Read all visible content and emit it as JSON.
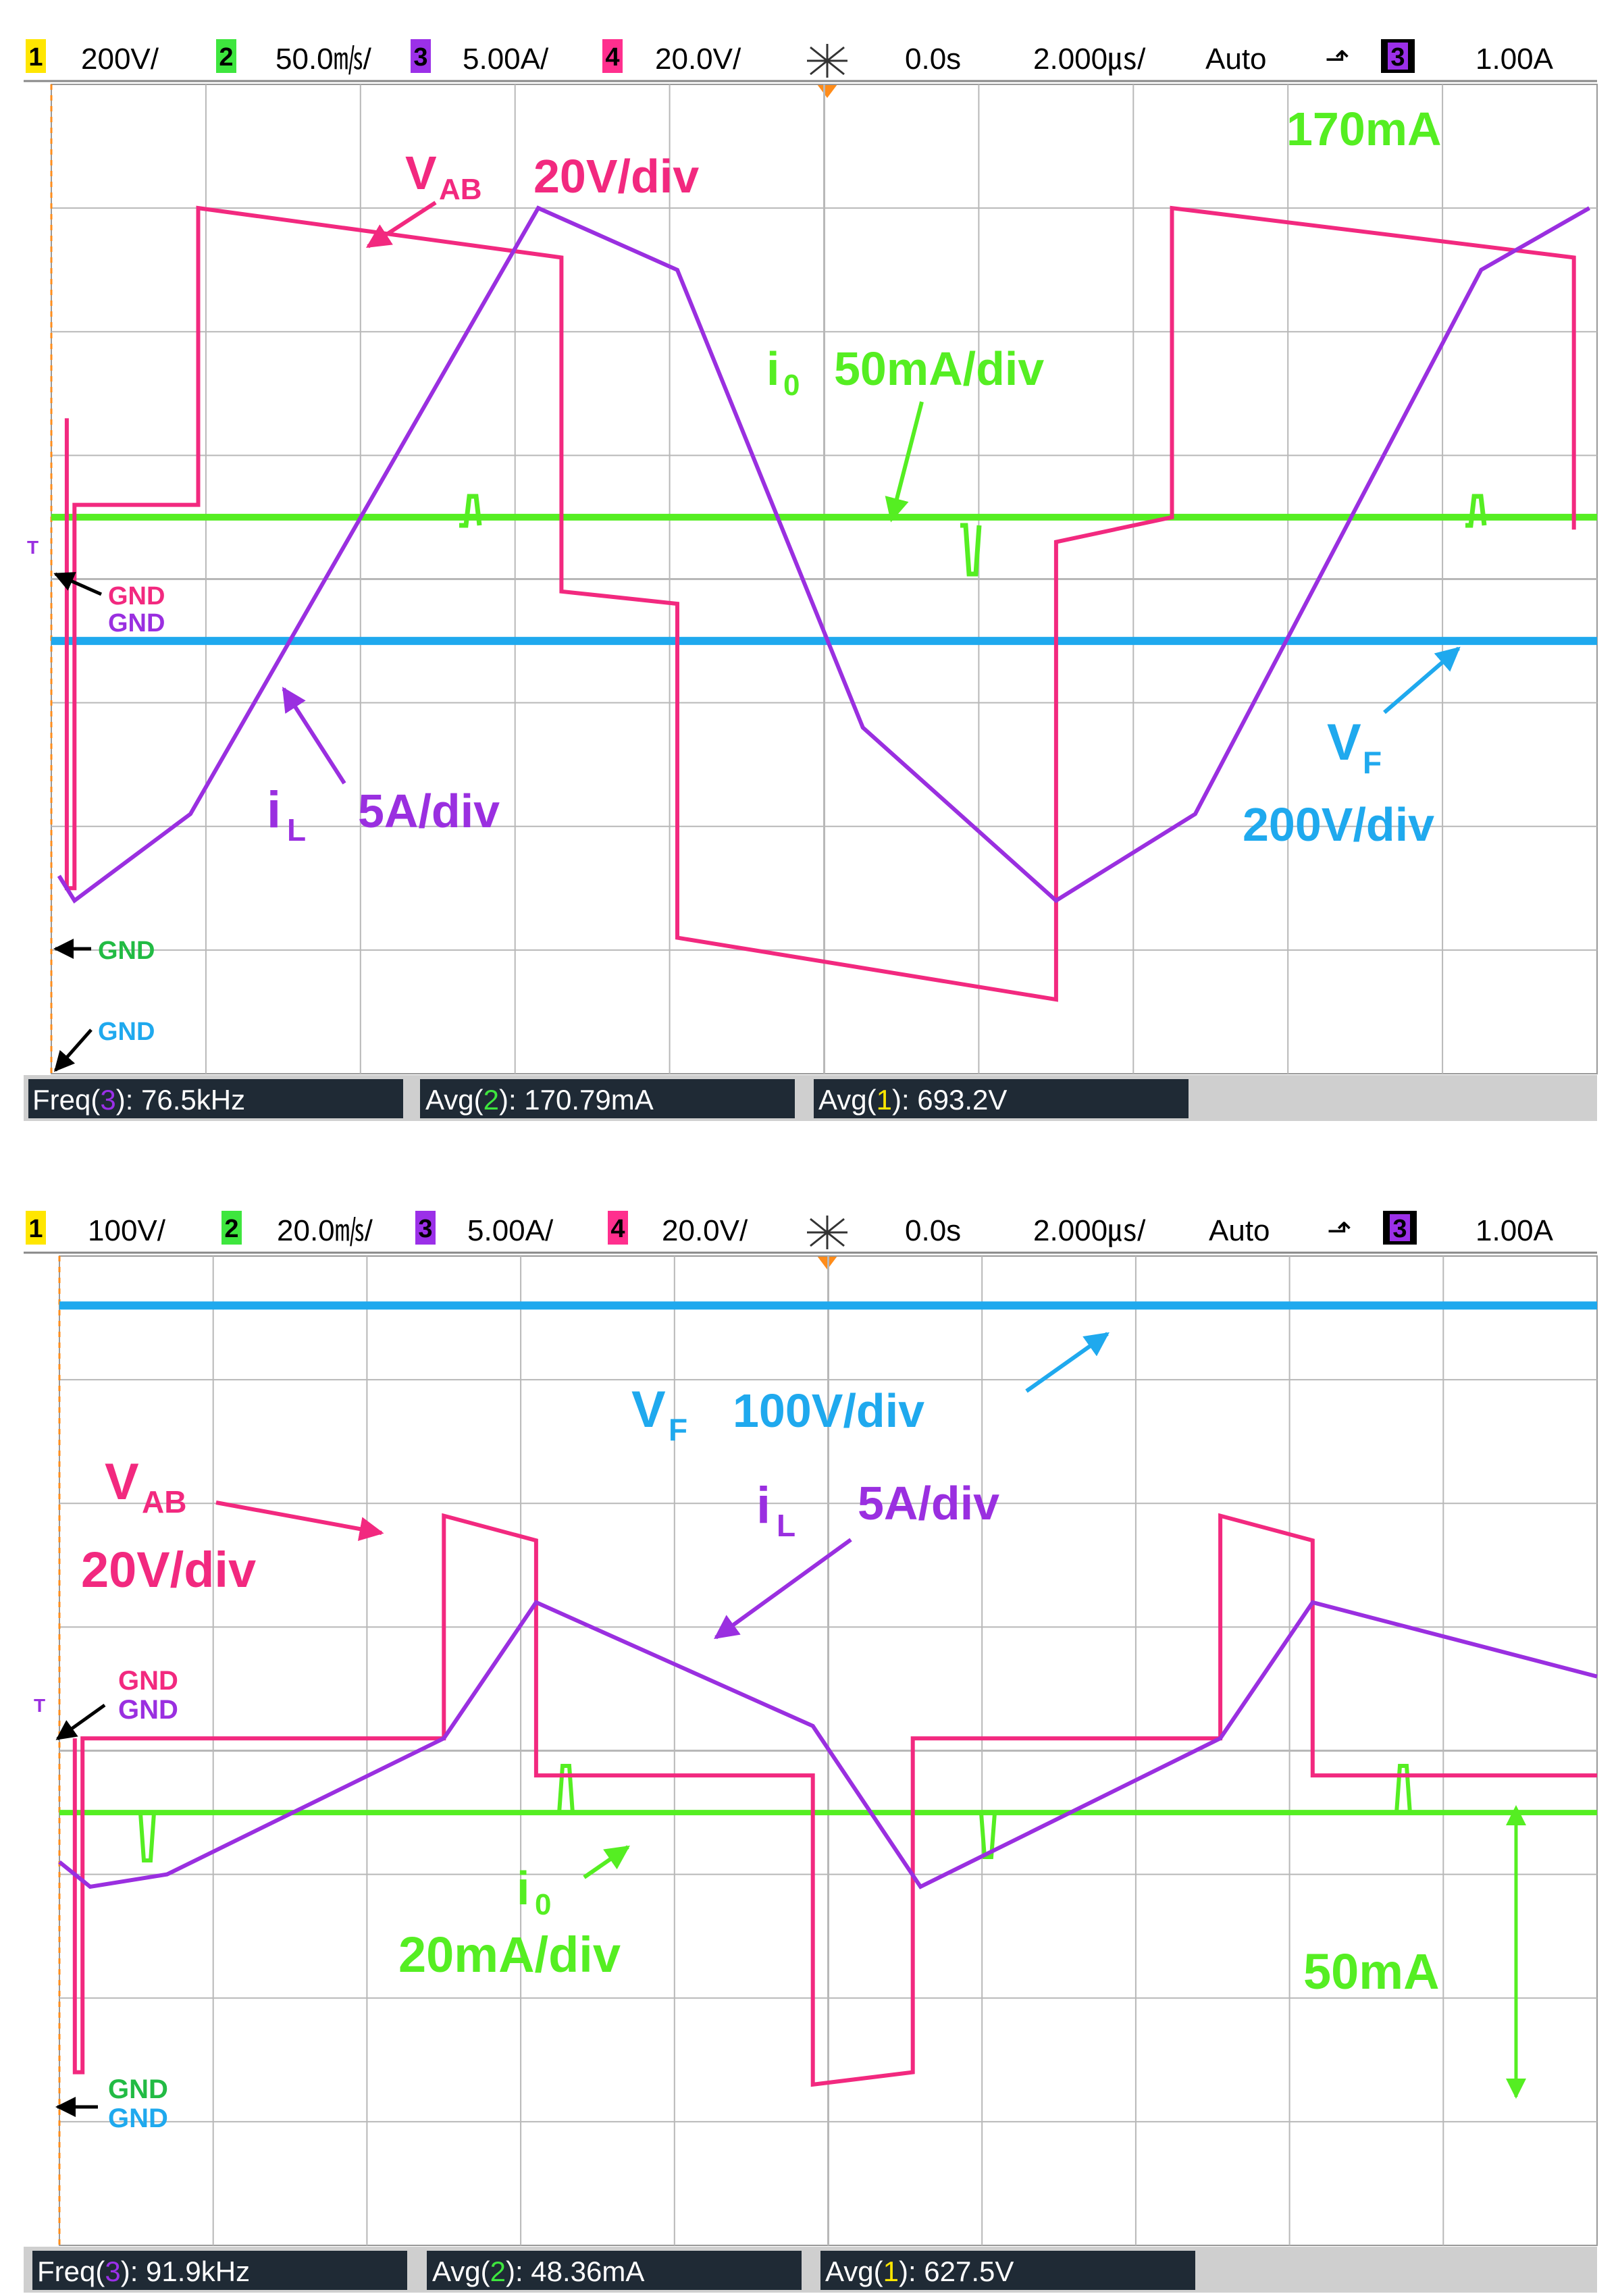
{
  "colors": {
    "ch1": "#ffe600",
    "ch2": "#3ee63e",
    "ch3": "#9b30e8",
    "ch4": "#ff2f8e",
    "vf_blue": "#1fa9ee",
    "vab_pink": "#f2297f",
    "il_purple": "#9a2fe0",
    "io_green": "#55ee22",
    "gnd_green": "#22bb44",
    "grid": "#b8b8b8",
    "status_bg": "#1f2a35"
  },
  "scopes": [
    {
      "header": {
        "ch1_num": "1",
        "ch1_scale": "200V/",
        "ch2_num": "2",
        "ch2_scale": "50.0㎧/",
        "ch3_num": "3",
        "ch3_scale": "5.00A/",
        "ch4_num": "4",
        "ch4_scale": "20.0V/",
        "trig_icon": "trigger-star-icon",
        "delay": "0.0s",
        "timebase": "2.000㎲/",
        "mode": "Auto",
        "slope_icon": "⬏",
        "trig_ch": "3",
        "trig_level": "1.00A"
      },
      "labels": {
        "vab_main": "V",
        "vab_sub": "AB",
        "vab_scale": "20V/div",
        "io_main": "i",
        "io_sub": "0",
        "io_scale": "50mA/div",
        "il_main": "i",
        "il_sub": "L",
        "il_scale": "5A/div",
        "vf_main": "V",
        "vf_sub": "F",
        "vf_scale": "200V/div",
        "current_label": "170mA",
        "gnd_pink": "GND",
        "gnd_purple": "GND",
        "gnd_green": "GND",
        "gnd_blue": "GND",
        "trig_marker": "T"
      },
      "status": {
        "f1_pre": "Freq(",
        "f1_ch": "3",
        "f1_post": "): 76.5kHz",
        "f2_pre": "Avg(",
        "f2_ch": "2",
        "f2_post": "): 170.79mA",
        "f3_pre": "Avg(",
        "f3_ch": "1",
        "f3_post": "): 693.2V"
      }
    },
    {
      "header": {
        "ch1_num": "1",
        "ch1_scale": "100V/",
        "ch2_num": "2",
        "ch2_scale": "20.0㎧/",
        "ch3_num": "3",
        "ch3_scale": "5.00A/",
        "ch4_num": "4",
        "ch4_scale": "20.0V/",
        "trig_icon": "trigger-star-icon",
        "delay": "0.0s",
        "timebase": "2.000㎲/",
        "mode": "Auto",
        "slope_icon": "⬏",
        "trig_ch": "3",
        "trig_level": "1.00A"
      },
      "labels": {
        "vab_main": "V",
        "vab_sub": "AB",
        "vab_scale": "20V/div",
        "io_main": "i",
        "io_sub": "0",
        "io_scale": "20mA/div",
        "il_main": "i",
        "il_sub": "L",
        "il_scale": "5A/div",
        "vf_main": "V",
        "vf_sub": "F",
        "vf_scale": "100V/div",
        "current_label": "50mA",
        "gnd_pink": "GND",
        "gnd_purple": "GND",
        "gnd_green": "GND",
        "gnd_blue": "GND",
        "trig_marker": "T"
      },
      "status": {
        "f1_pre": "Freq(",
        "f1_ch": "3",
        "f1_post": "): 91.9kHz",
        "f2_pre": "Avg(",
        "f2_ch": "2",
        "f2_post": "): 48.36mA",
        "f3_pre": "Avg(",
        "f3_ch": "1",
        "f3_post": "): 627.5V"
      }
    }
  ],
  "chart_data": [
    {
      "type": "line",
      "title": "",
      "x_unit": "µs",
      "x_range": [
        -10,
        10
      ],
      "y_unit": "div",
      "y_range": [
        -4,
        4
      ],
      "grid": true,
      "series": [
        {
          "name": "VAB",
          "x": [
            -9.8,
            -9.8,
            -9.7,
            -9.7,
            -8.1,
            -8.1,
            -3.4,
            -3.4,
            -3.4,
            -1.9,
            -1.9,
            3.0,
            3.0,
            3.0,
            4.5,
            4.5,
            9.7,
            9.7
          ],
          "y": [
            1.3,
            -2.5,
            -2.5,
            0.6,
            0.6,
            3.0,
            2.6,
            2.6,
            -0.1,
            -0.2,
            -2.9,
            -3.4,
            -3.4,
            0.3,
            0.5,
            3.0,
            2.6,
            0.4
          ]
        },
        {
          "name": "i0",
          "x": [
            -10,
            10
          ],
          "y": [
            0.5,
            0.5
          ]
        },
        {
          "name": "iL",
          "x": [
            -9.9,
            -9.7,
            -8.2,
            -3.7,
            -1.9,
            0.5,
            3.0,
            4.8,
            8.5,
            9.9
          ],
          "y": [
            -2.4,
            -2.6,
            -1.9,
            3.0,
            2.5,
            -1.2,
            -2.6,
            -1.9,
            2.5,
            3.0
          ]
        },
        {
          "name": "VF",
          "x": [
            -10,
            10
          ],
          "y": [
            -0.5,
            -0.5
          ]
        }
      ],
      "annotations": [
        "VAB 20V/div",
        "i0 50mA/div",
        "iL 5A/div",
        "VF 200V/div",
        "170mA"
      ]
    },
    {
      "type": "line",
      "title": "",
      "x_unit": "µs",
      "x_range": [
        -10,
        10
      ],
      "y_unit": "div",
      "y_range": [
        -4,
        4
      ],
      "grid": true,
      "series": [
        {
          "name": "VAB",
          "x": [
            -9.8,
            -9.8,
            -9.7,
            -9.7,
            -5.0,
            -5.0,
            -3.8,
            -3.8,
            -0.2,
            -0.2,
            1.1,
            1.1,
            5.1,
            5.1,
            6.3,
            6.3,
            10.0
          ],
          "y": [
            0.1,
            -2.6,
            -2.6,
            0.1,
            0.1,
            1.9,
            1.7,
            -0.2,
            -0.2,
            -2.7,
            -2.6,
            0.1,
            0.1,
            1.9,
            1.7,
            -0.2,
            -0.2
          ]
        },
        {
          "name": "i0",
          "x": [
            -10,
            10
          ],
          "y": [
            -0.5,
            -0.5
          ]
        },
        {
          "name": "iL",
          "x": [
            -10,
            -9.6,
            -8.6,
            -5.0,
            -3.8,
            -0.2,
            1.2,
            5.1,
            6.3,
            10.0
          ],
          "y": [
            -0.9,
            -1.1,
            -1.0,
            0.1,
            1.2,
            0.2,
            -1.1,
            0.1,
            1.2,
            0.6
          ]
        },
        {
          "name": "VF",
          "x": [
            -10,
            10
          ],
          "y": [
            3.6,
            3.6
          ]
        }
      ],
      "annotations": [
        "VF 100V/div",
        "VAB 20V/div",
        "iL 5A/div",
        "i0 20mA/div",
        "50mA"
      ]
    }
  ]
}
